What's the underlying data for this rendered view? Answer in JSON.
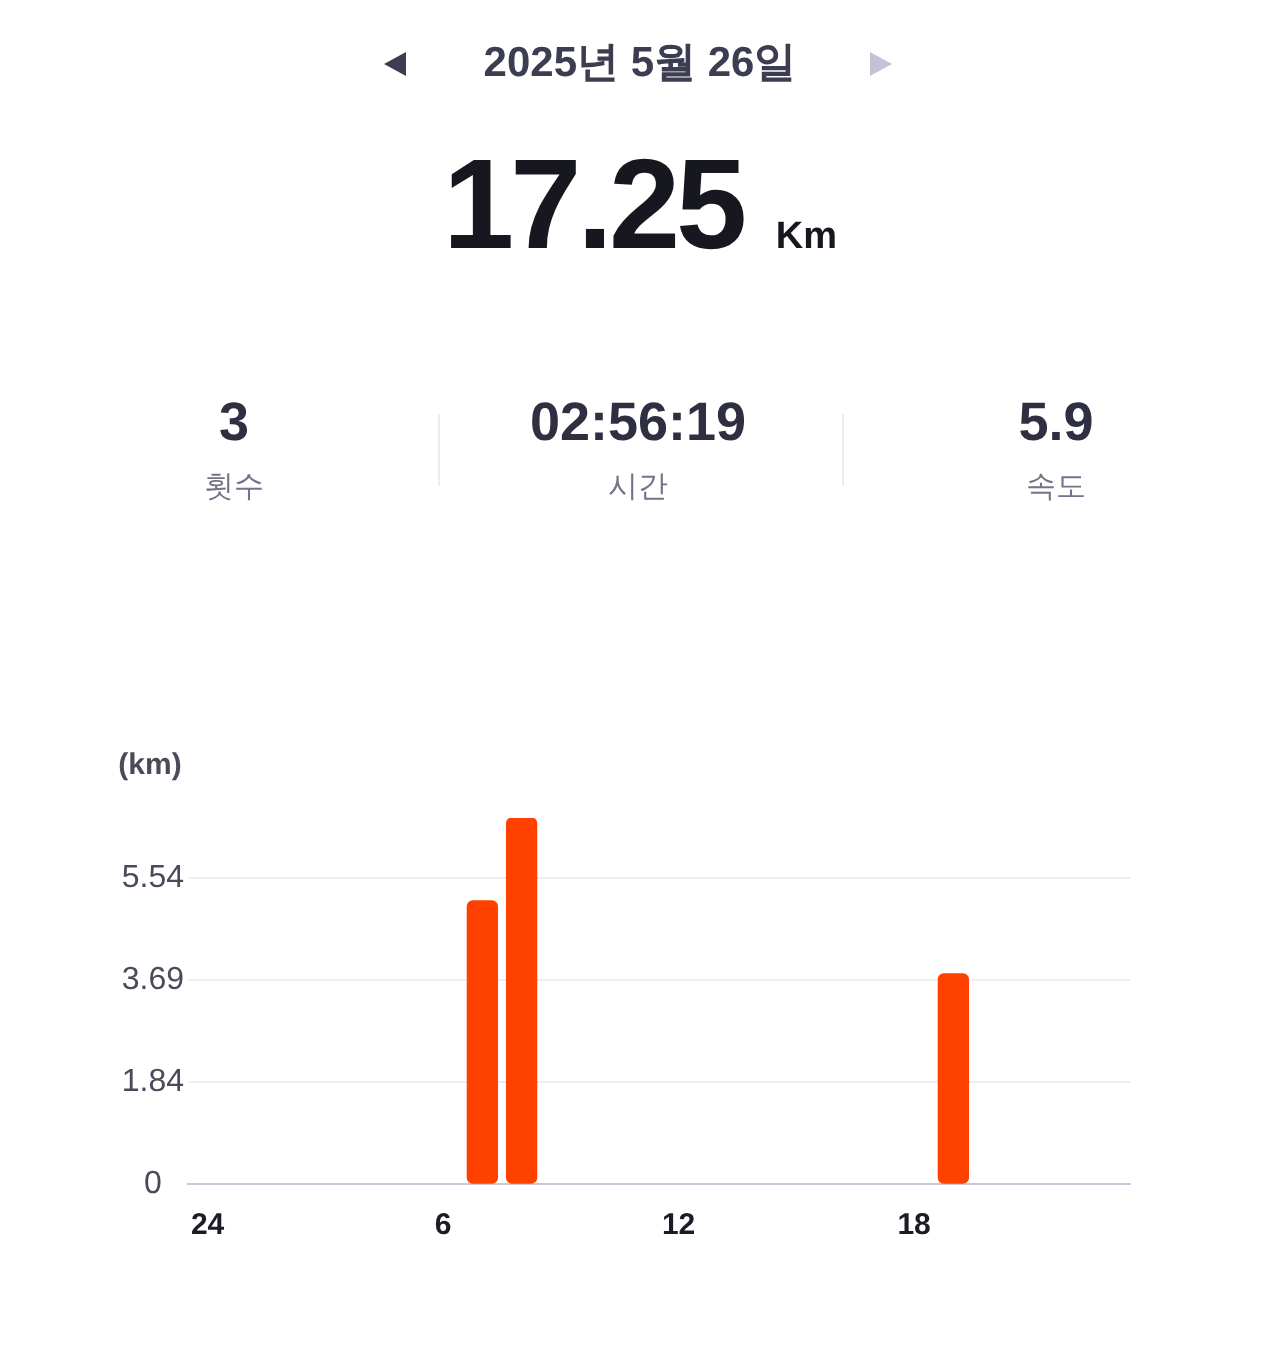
{
  "chart_data": {
    "type": "bar",
    "title": "2025년 5월 26일",
    "subtitle": "17.25 Km",
    "annotations": [
      "3",
      "횟수",
      "02:56:19",
      "시간",
      "5.9",
      "속도"
    ],
    "ylabel": "(km)",
    "categories": [
      "24",
      null,
      null,
      null,
      null,
      null,
      "6",
      null,
      null,
      null,
      null,
      null,
      "12",
      null,
      null,
      null,
      null,
      null,
      "18",
      null,
      null,
      null,
      null,
      null
    ],
    "values": [
      null,
      null,
      null,
      null,
      null,
      null,
      null,
      5.12,
      6.62,
      null,
      null,
      null,
      null,
      null,
      null,
      null,
      null,
      null,
      null,
      3.8,
      null,
      null,
      null,
      null
    ],
    "color": "#ff4100",
    "ylim": [
      0,
      6.62
    ],
    "yticks": [
      0,
      1.84,
      3.69,
      5.54
    ],
    "grid": "y"
  }
}
